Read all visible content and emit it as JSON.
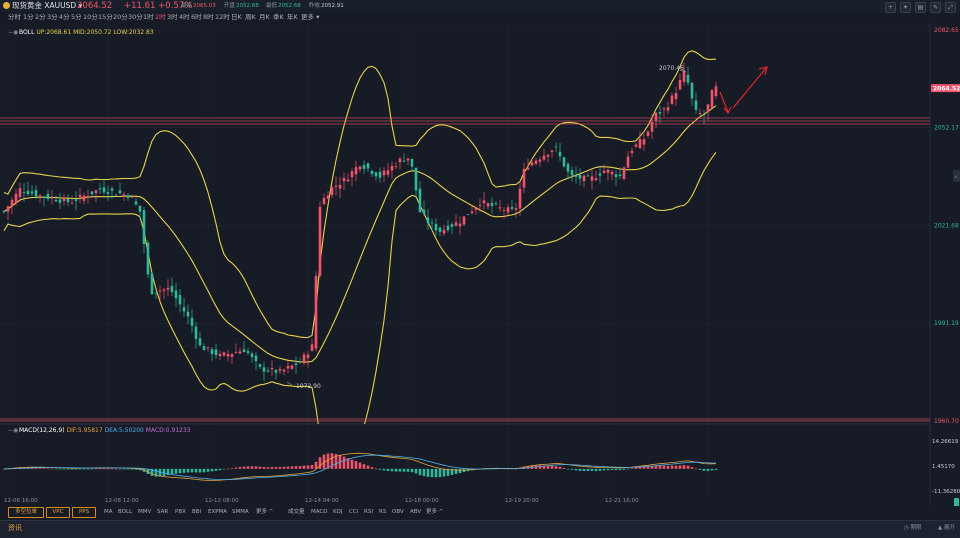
{
  "header": {
    "symbol_name": "现货黄金 XAUUSD ▾",
    "price": "2064.52",
    "change": "+11.61 +0.57%",
    "stats": [
      {
        "label": "最高",
        "value": "2065.03",
        "color": "#f0546a"
      },
      {
        "label": "开盘",
        "value": "2052.68",
        "color": "#2fb89a"
      },
      {
        "label": "最低",
        "value": "2052.68",
        "color": "#2fb89a"
      },
      {
        "label": "昨收",
        "value": "2052.91",
        "color": "#c8ccd4"
      }
    ],
    "icons": [
      "plus-icon",
      "tools-icon",
      "chart-icon",
      "edit-icon",
      "expand-icon"
    ]
  },
  "periods": [
    "分时",
    "1分",
    "2分",
    "3分",
    "4分",
    "5分",
    "10分",
    "15分",
    "20分",
    "30分",
    "1时",
    "2时",
    "3时",
    "4时",
    "6时",
    "8时",
    "12时",
    "日K",
    "周K",
    "月K",
    "季K",
    "年K",
    "更多 ▾"
  ],
  "active_period": "2时",
  "boll": {
    "name": "BOLL",
    "up": "UP:2068.61",
    "mid": "MID:2050.72",
    "low": "LOW:2032.83"
  },
  "price_axis": {
    "ticks": [
      "2082.65",
      "2052.17",
      "2021.68",
      "1991.19",
      "1960.70"
    ],
    "current_label": "2064.52"
  },
  "annotations": {
    "high_label": "2070.46",
    "low_label": "1972.90"
  },
  "macd": {
    "name": "MACD(12,26,9)",
    "dif": "DIF:5.95817",
    "dea": "DEA:5.50200",
    "macd": "MACD:0.91233",
    "ticks": [
      "14.26619",
      "1.45170",
      "-11.36280"
    ]
  },
  "time_axis": [
    "12-06 16:00",
    "12-08 12:00",
    "12-12 08:00",
    "12-14 04:00",
    "12-18 00:00",
    "12-19 20:00",
    "12-21 16:00"
  ],
  "bottom_toolbar": {
    "buttons": [
      "多空拉单",
      "VPC",
      "PPS"
    ],
    "main_indicators": [
      "MA",
      "BOLL",
      "MMV",
      "SAR",
      "PBX",
      "BBI",
      "EXPMA",
      "SMMA",
      "更多 ^"
    ],
    "sub_indicators": [
      "成交量",
      "MACD",
      "KDJ",
      "CCI",
      "RSI",
      "RS",
      "OBV",
      "ABV",
      "更多 ^"
    ]
  },
  "news": {
    "label": "资讯",
    "notice": "◷ 期限",
    "expand": "▲ 展开"
  },
  "colors": {
    "up": "#f0546a",
    "down": "#2fb89a",
    "boll": "#e8d24a",
    "accent": "#e8a23a",
    "arrow": "#e0262e"
  }
}
